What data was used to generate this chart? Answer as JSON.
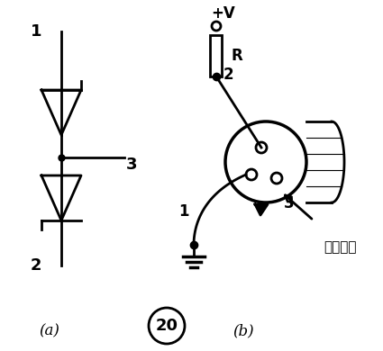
{
  "bg_color": "#ffffff",
  "label_a": "(a)",
  "label_b": "(b)",
  "label_20": "20",
  "label_plusV": "+V",
  "label_R": "R",
  "label_note": "悉空不用",
  "pin1_a": "1",
  "pin2_a": "2",
  "pin3_a": "3",
  "pin1_b": "1",
  "pin2_b": "2",
  "pin3_b": "3"
}
